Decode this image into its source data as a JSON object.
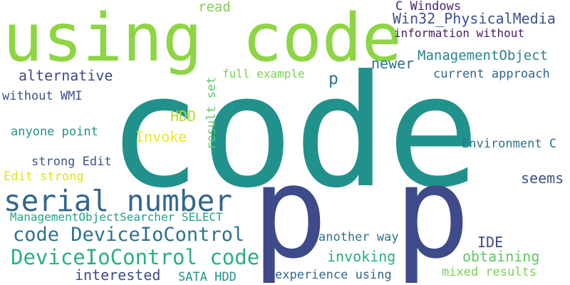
{
  "words": [
    {
      "text": "code",
      "color": "#21918c"
    },
    {
      "text": "using code",
      "color": "#8ed543"
    },
    {
      "text": "p",
      "color": "#3e4a89"
    },
    {
      "text": "p",
      "color": "#3e4a89"
    },
    {
      "text": "serial number",
      "color": "#31668e"
    },
    {
      "text": "DeviceIoControl code",
      "color": "#2ab07f"
    },
    {
      "text": "code DeviceIoControl",
      "color": "#2d718e"
    },
    {
      "text": "read",
      "color": "#7ad151"
    },
    {
      "text": "C Windows",
      "color": "#482475"
    },
    {
      "text": "Win32_PhysicalMedia",
      "color": "#3b528b"
    },
    {
      "text": "information without",
      "color": "#481b6d"
    },
    {
      "text": "ManagementObject",
      "color": "#26828e"
    },
    {
      "text": "newer",
      "color": "#2c728e"
    },
    {
      "text": "alternative",
      "color": "#3e4a89"
    },
    {
      "text": "full example",
      "color": "#7ad151"
    },
    {
      "text": "p",
      "color": "#2c728e"
    },
    {
      "text": "current approach",
      "color": "#33638d"
    },
    {
      "text": "without WMI",
      "color": "#3b528b"
    },
    {
      "text": "result set",
      "color": "#5ec962"
    },
    {
      "text": "HDD",
      "color": "#b5de2b"
    },
    {
      "text": "Invoke",
      "color": "#f1e51d"
    },
    {
      "text": "anyone point",
      "color": "#21918c"
    },
    {
      "text": "Environment C",
      "color": "#2c728e"
    },
    {
      "text": "strong Edit",
      "color": "#3b528b"
    },
    {
      "text": "Edit strong",
      "color": "#dde318"
    },
    {
      "text": "seems",
      "color": "#3b528b"
    },
    {
      "text": "ManagementObjectSearcher SELECT",
      "color": "#20a386"
    },
    {
      "text": "another way",
      "color": "#2c728e"
    },
    {
      "text": "IDE",
      "color": "#3e4a89"
    },
    {
      "text": "invoking",
      "color": "#28ae80"
    },
    {
      "text": "obtaining",
      "color": "#5ec962"
    },
    {
      "text": "interested",
      "color": "#3e4a89"
    },
    {
      "text": "SATA HDD",
      "color": "#21918c"
    },
    {
      "text": "experience using",
      "color": "#31668e"
    },
    {
      "text": "mixed results",
      "color": "#7ad151"
    }
  ]
}
